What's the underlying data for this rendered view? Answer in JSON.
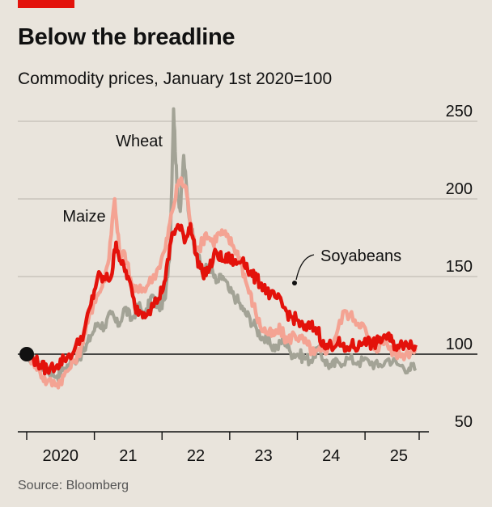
{
  "title": "Below the breadline",
  "subtitle": "Commodity prices, January 1st 2020=100",
  "source": "Source: Bloomberg",
  "colors": {
    "soyabeans": "#e3120b",
    "maize": "#f4a393",
    "wheat": "#a3a396",
    "grid": "#b9b4ab",
    "baseline": "#111111",
    "brand_bar": "#e3120b"
  },
  "chart_data": {
    "type": "line",
    "title": "Below the breadline",
    "subtitle": "Commodity prices, January 1st 2020=100",
    "ylim": [
      50,
      250
    ],
    "yticks": [
      50,
      100,
      150,
      200,
      250
    ],
    "ytick_labels": [
      "50",
      "100",
      "150",
      "200",
      "250"
    ],
    "x_range": [
      2020.0,
      2025.8
    ],
    "xticks": [
      2020,
      2021,
      2022,
      2023,
      2024,
      2025
    ],
    "xtick_labels": [
      "2020",
      "21",
      "22",
      "23",
      "24",
      "25"
    ],
    "baseline": 100,
    "grid": true,
    "series": [
      {
        "name": "Wheat",
        "color_key": "wheat",
        "points": [
          [
            2020.0,
            100
          ],
          [
            2020.1,
            97
          ],
          [
            2020.2,
            93
          ],
          [
            2020.3,
            90
          ],
          [
            2020.45,
            86
          ],
          [
            2020.55,
            91
          ],
          [
            2020.7,
            96
          ],
          [
            2020.85,
            102
          ],
          [
            2020.95,
            112
          ],
          [
            2021.05,
            120
          ],
          [
            2021.15,
            118
          ],
          [
            2021.25,
            126
          ],
          [
            2021.35,
            118
          ],
          [
            2021.45,
            130
          ],
          [
            2021.55,
            122
          ],
          [
            2021.65,
            132
          ],
          [
            2021.75,
            124
          ],
          [
            2021.85,
            138
          ],
          [
            2021.95,
            130
          ],
          [
            2022.05,
            136
          ],
          [
            2022.12,
            170
          ],
          [
            2022.17,
            258
          ],
          [
            2022.22,
            210
          ],
          [
            2022.27,
            192
          ],
          [
            2022.32,
            228
          ],
          [
            2022.4,
            188
          ],
          [
            2022.5,
            168
          ],
          [
            2022.6,
            152
          ],
          [
            2022.7,
            158
          ],
          [
            2022.8,
            146
          ],
          [
            2022.9,
            150
          ],
          [
            2023.0,
            140
          ],
          [
            2023.1,
            136
          ],
          [
            2023.2,
            128
          ],
          [
            2023.3,
            123
          ],
          [
            2023.4,
            116
          ],
          [
            2023.5,
            110
          ],
          [
            2023.6,
            106
          ],
          [
            2023.7,
            104
          ],
          [
            2023.8,
            110
          ],
          [
            2023.9,
            101
          ],
          [
            2024.0,
            100
          ],
          [
            2024.1,
            98
          ],
          [
            2024.2,
            96
          ],
          [
            2024.3,
            104
          ],
          [
            2024.4,
            96
          ],
          [
            2024.5,
            92
          ],
          [
            2024.6,
            95
          ],
          [
            2024.75,
            97
          ],
          [
            2024.9,
            95
          ],
          [
            2025.05,
            96
          ],
          [
            2025.2,
            92
          ],
          [
            2025.35,
            97
          ],
          [
            2025.5,
            93
          ],
          [
            2025.65,
            91
          ],
          [
            2025.75,
            91
          ]
        ]
      },
      {
        "name": "Maize",
        "color_key": "maize",
        "points": [
          [
            2020.0,
            100
          ],
          [
            2020.1,
            96
          ],
          [
            2020.2,
            88
          ],
          [
            2020.3,
            82
          ],
          [
            2020.45,
            81
          ],
          [
            2020.55,
            86
          ],
          [
            2020.7,
            95
          ],
          [
            2020.8,
            104
          ],
          [
            2020.9,
            120
          ],
          [
            2021.0,
            135
          ],
          [
            2021.1,
            142
          ],
          [
            2021.2,
            158
          ],
          [
            2021.3,
            200
          ],
          [
            2021.38,
            162
          ],
          [
            2021.45,
            165
          ],
          [
            2021.55,
            145
          ],
          [
            2021.65,
            140
          ],
          [
            2021.8,
            145
          ],
          [
            2021.95,
            156
          ],
          [
            2022.05,
            168
          ],
          [
            2022.15,
            192
          ],
          [
            2022.25,
            212
          ],
          [
            2022.35,
            208
          ],
          [
            2022.45,
            175
          ],
          [
            2022.55,
            168
          ],
          [
            2022.65,
            178
          ],
          [
            2022.75,
            172
          ],
          [
            2022.85,
            178
          ],
          [
            2022.95,
            176
          ],
          [
            2023.05,
            170
          ],
          [
            2023.15,
            162
          ],
          [
            2023.25,
            145
          ],
          [
            2023.35,
            132
          ],
          [
            2023.45,
            118
          ],
          [
            2023.55,
            114
          ],
          [
            2023.65,
            112
          ],
          [
            2023.75,
            116
          ],
          [
            2023.85,
            108
          ],
          [
            2023.95,
            113
          ],
          [
            2024.05,
            110
          ],
          [
            2024.15,
            106
          ],
          [
            2024.25,
            100
          ],
          [
            2024.35,
            102
          ],
          [
            2024.45,
            104
          ],
          [
            2024.55,
            110
          ],
          [
            2024.7,
            128
          ],
          [
            2024.85,
            122
          ],
          [
            2024.95,
            120
          ],
          [
            2025.05,
            110
          ],
          [
            2025.15,
            104
          ],
          [
            2025.3,
            108
          ],
          [
            2025.45,
            100
          ],
          [
            2025.6,
            100
          ],
          [
            2025.75,
            104
          ]
        ]
      },
      {
        "name": "Soyabeans",
        "color_key": "soyabeans",
        "points": [
          [
            2020.0,
            100
          ],
          [
            2020.1,
            97
          ],
          [
            2020.2,
            93
          ],
          [
            2020.3,
            90
          ],
          [
            2020.45,
            93
          ],
          [
            2020.55,
            97
          ],
          [
            2020.7,
            102
          ],
          [
            2020.85,
            115
          ],
          [
            2020.95,
            132
          ],
          [
            2021.05,
            150
          ],
          [
            2021.15,
            148
          ],
          [
            2021.25,
            150
          ],
          [
            2021.32,
            172
          ],
          [
            2021.4,
            158
          ],
          [
            2021.5,
            150
          ],
          [
            2021.6,
            130
          ],
          [
            2021.7,
            127
          ],
          [
            2021.8,
            128
          ],
          [
            2021.95,
            136
          ],
          [
            2022.05,
            148
          ],
          [
            2022.15,
            178
          ],
          [
            2022.25,
            182
          ],
          [
            2022.35,
            174
          ],
          [
            2022.42,
            184
          ],
          [
            2022.5,
            164
          ],
          [
            2022.6,
            152
          ],
          [
            2022.7,
            155
          ],
          [
            2022.8,
            166
          ],
          [
            2022.9,
            160
          ],
          [
            2023.0,
            162
          ],
          [
            2023.1,
            158
          ],
          [
            2023.2,
            162
          ],
          [
            2023.3,
            152
          ],
          [
            2023.4,
            148
          ],
          [
            2023.5,
            144
          ],
          [
            2023.6,
            138
          ],
          [
            2023.7,
            136
          ],
          [
            2023.8,
            130
          ],
          [
            2023.9,
            124
          ],
          [
            2024.0,
            122
          ],
          [
            2024.1,
            116
          ],
          [
            2024.2,
            118
          ],
          [
            2024.3,
            116
          ],
          [
            2024.4,
            104
          ],
          [
            2024.5,
            106
          ],
          [
            2024.6,
            108
          ],
          [
            2024.7,
            102
          ],
          [
            2024.8,
            106
          ],
          [
            2024.9,
            104
          ],
          [
            2025.0,
            110
          ],
          [
            2025.1,
            106
          ],
          [
            2025.2,
            108
          ],
          [
            2025.3,
            112
          ],
          [
            2025.4,
            108
          ],
          [
            2025.5,
            104
          ],
          [
            2025.6,
            108
          ],
          [
            2025.75,
            106
          ]
        ]
      }
    ],
    "annotations": [
      {
        "text": "Wheat",
        "series": "Wheat"
      },
      {
        "text": "Maize",
        "series": "Maize"
      },
      {
        "text": "Soyabeans",
        "series": "Soyabeans"
      }
    ]
  }
}
